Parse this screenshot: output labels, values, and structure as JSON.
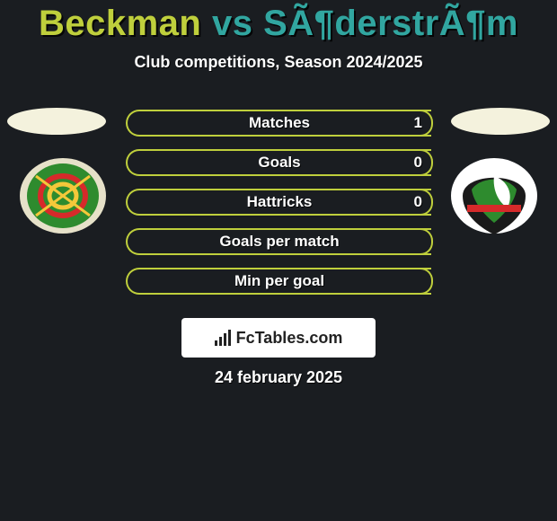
{
  "background_color": "#1a1d21",
  "title": {
    "player_a": "Beckman",
    "vs": "vs",
    "player_b": "SÃ¶derstrÃ¶m",
    "color_a": "#bfcf3c",
    "color_vs": "#31a6a0",
    "color_b": "#31a6a0",
    "fontsize": 40
  },
  "subtitle": {
    "text": "Club competitions, Season 2024/2025",
    "fontsize": 18,
    "color": "#ffffff"
  },
  "player_head_color": "#f4f2dd",
  "club_a": {
    "shield_bg": "#e6e1c9",
    "shield_fill": "#2e8b2e",
    "ring_outer": "#d62a2a",
    "ring_inner": "#f4c83a"
  },
  "club_b": {
    "shield_bg": "#ffffff",
    "main": "#1a1a1a",
    "accent": "#2e8b2e",
    "stripe": "#d62a2a"
  },
  "stat_border_color": "#bfcf3c",
  "stats": [
    {
      "label": "Matches",
      "value_right": "1"
    },
    {
      "label": "Goals",
      "value_right": "0"
    },
    {
      "label": "Hattricks",
      "value_right": "0"
    },
    {
      "label": "Goals per match",
      "value_right": ""
    },
    {
      "label": "Min per goal",
      "value_right": ""
    }
  ],
  "footer_brand": "FcTables.com",
  "footer_date": "24 february 2025"
}
